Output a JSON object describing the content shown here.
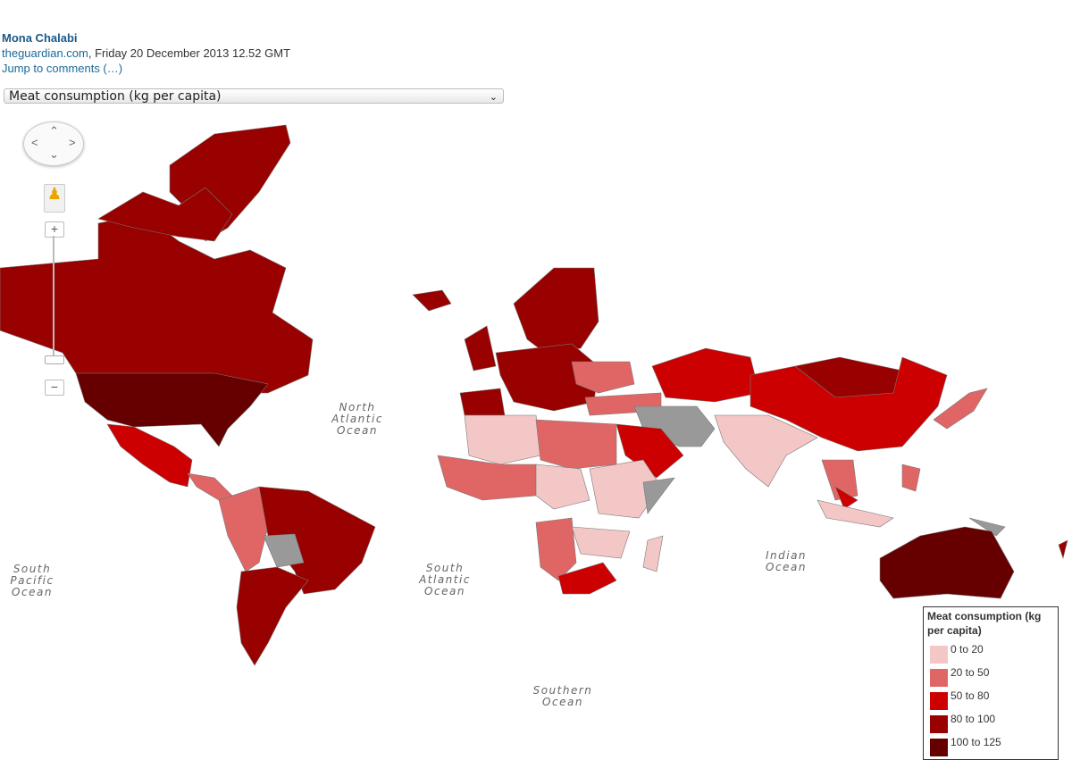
{
  "byline": {
    "author": "Mona Chalabi",
    "site": "theguardian.com",
    "date": ", Friday 20 December 2013 12.52 GMT",
    "comments": "Jump to comments (…)"
  },
  "selector": {
    "value": "Meat consumption (kg per capita)"
  },
  "map": {
    "oceans": [
      "North Atlantic Ocean",
      "South Atlantic Ocean",
      "South Pacific Ocean",
      "Indian Ocean",
      "Southern Ocean"
    ],
    "no_data_color": "#999999",
    "controls": {
      "zoom_in": "+",
      "zoom_out": "−"
    }
  },
  "legend": {
    "title": "Meat consumption (kg per capita)",
    "items": [
      {
        "label": "0 to 20",
        "color": "#f4c7c7"
      },
      {
        "label": "20 to 50",
        "color": "#e06666"
      },
      {
        "label": "50 to 80",
        "color": "#cc0000"
      },
      {
        "label": "80 to 100",
        "color": "#990000"
      },
      {
        "label": "100 to 125",
        "color": "#660000"
      }
    ]
  }
}
